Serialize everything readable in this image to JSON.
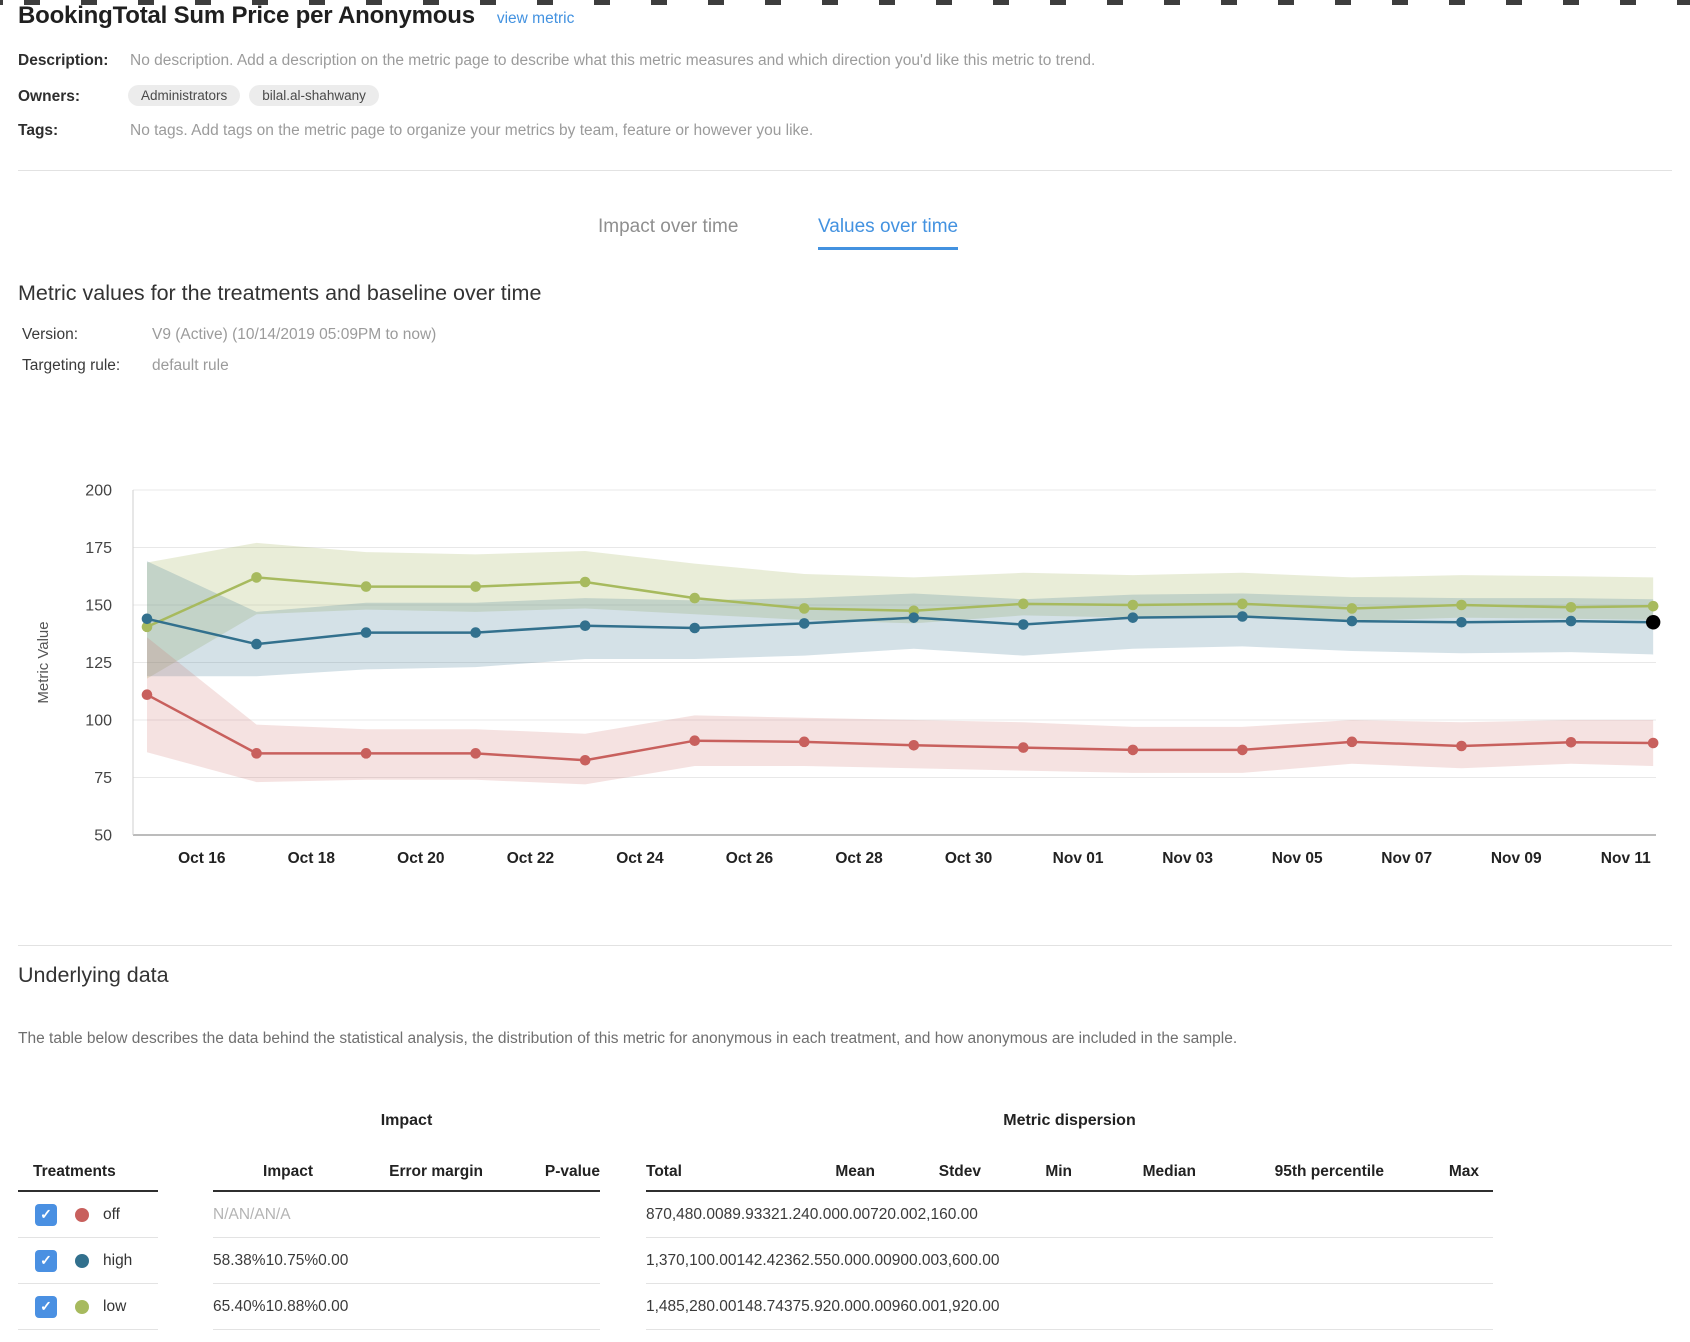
{
  "page_title": {
    "title": "BookingTotal Sum Price per Anonymous",
    "link": "view metric"
  },
  "meta": {
    "description_label": "Description:",
    "description": "No description. Add a description on the metric page to describe what this metric measures and which direction you'd like this metric to trend.",
    "owners_label": "Owners:",
    "owners": [
      "Administrators",
      "bilal.al-shahwany"
    ],
    "tags_label": "Tags:",
    "tags": "No tags. Add tags on the metric page to organize your metrics by team, feature or however you like."
  },
  "tabs": {
    "items": [
      {
        "label": "Impact over time",
        "active": false
      },
      {
        "label": "Values over time",
        "active": true
      }
    ]
  },
  "section": {
    "heading": "Metric values for the treatments and baseline over time",
    "version_label": "Version:",
    "version": "V9 (Active) (10/14/2019 05:09PM to now)",
    "targeting_label": "Targeting rule:",
    "targeting": "default rule"
  },
  "chart_data": {
    "type": "line",
    "title": "",
    "xlabel": "",
    "ylabel": "Metric Value",
    "ylim": [
      50,
      200
    ],
    "yticks": [
      50,
      75,
      100,
      125,
      150,
      175,
      200
    ],
    "grid": true,
    "legend_position": "none",
    "x_tick_labels": [
      {
        "label": "Oct 16",
        "day": 1
      },
      {
        "label": "Oct 18",
        "day": 3
      },
      {
        "label": "Oct 20",
        "day": 5
      },
      {
        "label": "Oct 22",
        "day": 7
      },
      {
        "label": "Oct 24",
        "day": 9
      },
      {
        "label": "Oct 26",
        "day": 11
      },
      {
        "label": "Oct 28",
        "day": 13
      },
      {
        "label": "Oct 30",
        "day": 15
      },
      {
        "label": "Nov 01",
        "day": 17
      },
      {
        "label": "Nov 03",
        "day": 19
      },
      {
        "label": "Nov 05",
        "day": 21
      },
      {
        "label": "Nov 07",
        "day": 23
      },
      {
        "label": "Nov 09",
        "day": 25
      },
      {
        "label": "Nov 11",
        "day": 27
      }
    ],
    "point_days": [
      0,
      2,
      4,
      6,
      8,
      10,
      12,
      14,
      16,
      18,
      20,
      22,
      24,
      26,
      27.5
    ],
    "series": [
      {
        "name": "low",
        "color": "#a7ba5e",
        "band_color": "rgba(170,187,105,0.26)",
        "values": [
          140.5,
          162,
          158,
          158,
          160,
          153,
          148.5,
          147.5,
          150.5,
          150,
          150.5,
          148.5,
          150,
          149,
          149.5
        ],
        "upper": [
          168.5,
          177,
          173,
          172,
          173.5,
          168,
          163.5,
          162,
          164,
          163,
          164,
          162,
          163,
          162.5,
          162
        ],
        "lower": [
          118,
          146,
          148,
          147,
          148.5,
          146,
          143.5,
          142,
          145.5,
          144.5,
          144.5,
          143,
          144.5,
          144,
          143.5
        ]
      },
      {
        "name": "high",
        "color": "#32708d",
        "band_color": "rgba(61,118,144,0.22)",
        "values": [
          144,
          133,
          138,
          138,
          141,
          140,
          142,
          144.5,
          141.5,
          144.5,
          145,
          143,
          142.5,
          143,
          142.5
        ],
        "upper": [
          169,
          147,
          151,
          151,
          153,
          152,
          153,
          155,
          152.5,
          154.5,
          155,
          153.5,
          153,
          153,
          152.5
        ],
        "lower": [
          119,
          119,
          122,
          123,
          126.5,
          126.5,
          128,
          131,
          128,
          131,
          132,
          130,
          129,
          129.5,
          128.5
        ]
      },
      {
        "name": "off",
        "color": "#c8605d",
        "band_color": "rgba(205,108,105,0.20)",
        "values": [
          111,
          85.5,
          85.5,
          85.5,
          82.5,
          91,
          90.5,
          89,
          88,
          87,
          87,
          90.5,
          88.7,
          90.3,
          90
        ],
        "upper": [
          136,
          98,
          96,
          96,
          94,
          102,
          101,
          100,
          99,
          97,
          97,
          100,
          99,
          100,
          100
        ],
        "lower": [
          86,
          73,
          74,
          74,
          72,
          80,
          80,
          79,
          78,
          77,
          77,
          81,
          79,
          81,
          80
        ]
      }
    ],
    "highlight_last_point": {
      "series": "high",
      "color": "#000000"
    }
  },
  "underlying": {
    "heading": "Underlying data",
    "intro": "The table below describes the data behind the statistical analysis, the distribution of this metric for anonymous in each treatment, and how anonymous are included in the sample.",
    "treatments_header": "Treatments",
    "impact_group": {
      "title": "Impact",
      "columns": [
        "Impact",
        "Error margin",
        "P-value"
      ]
    },
    "dispersion_group": {
      "title": "Metric dispersion",
      "columns": [
        "Total",
        "Mean",
        "Stdev",
        "Min",
        "Median",
        "95th percentile",
        "Max"
      ]
    },
    "rows": [
      {
        "treatment": "off",
        "checked": true,
        "color": "#c8605d",
        "impact_muted": true,
        "impact": [
          "N/A",
          "N/A",
          "N/A"
        ],
        "dispersion": [
          "870,480.00",
          "89.93",
          "321.24",
          "0.00",
          "0.00",
          "720.00",
          "2,160.00"
        ]
      },
      {
        "treatment": "high",
        "checked": true,
        "color": "#32708d",
        "impact_muted": false,
        "impact": [
          "58.38%",
          "10.75%",
          "0.00"
        ],
        "dispersion": [
          "1,370,100.00",
          "142.42",
          "362.55",
          "0.00",
          "0.00",
          "900.00",
          "3,600.00"
        ]
      },
      {
        "treatment": "low",
        "checked": true,
        "color": "#a7ba5e",
        "impact_muted": false,
        "impact": [
          "65.40%",
          "10.88%",
          "0.00"
        ],
        "dispersion": [
          "1,485,280.00",
          "148.74",
          "375.92",
          "0.00",
          "0.00",
          "960.00",
          "1,920.00"
        ]
      }
    ]
  }
}
